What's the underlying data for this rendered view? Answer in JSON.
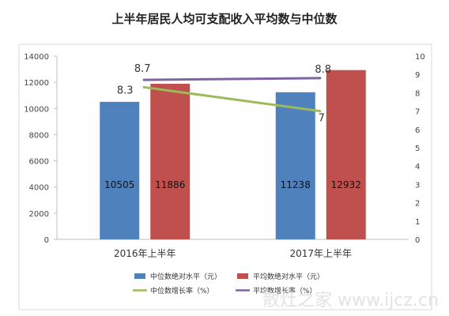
{
  "chart_data": {
    "type": "bar",
    "title": "上半年居民人均可支配收入平均数与中位数",
    "categories": [
      "2016年上半年",
      "2017年上半年"
    ],
    "series": [
      {
        "name": "中位数绝对水平（元）",
        "type": "bar",
        "axis": "left",
        "color": "#4f81bd",
        "values": [
          10505,
          11238
        ]
      },
      {
        "name": "平均数绝对水平（元）",
        "type": "bar",
        "axis": "left",
        "color": "#c0504d",
        "values": [
          11886,
          12932
        ]
      },
      {
        "name": "中位数增长率（%）",
        "type": "line",
        "axis": "right",
        "color": "#9bbb59",
        "values": [
          8.3,
          7
        ]
      },
      {
        "name": "平均数增长率（%）",
        "type": "line",
        "axis": "right",
        "color": "#8064a2",
        "values": [
          8.7,
          8.8
        ]
      }
    ],
    "y_left": {
      "min": 0,
      "max": 14000,
      "ticks": [
        "0",
        "2000",
        "4000",
        "6000",
        "8000",
        "10000",
        "12000",
        "14000"
      ]
    },
    "y_right": {
      "min": 0,
      "max": 10,
      "ticks": [
        "0",
        "1",
        "2",
        "3",
        "4",
        "5",
        "6",
        "7",
        "8",
        "9",
        "10"
      ]
    },
    "grid": false,
    "legend_position": "bottom",
    "bar_labels": [
      "10505",
      "11886",
      "11238",
      "12932"
    ],
    "point_labels": [
      "8.3",
      "7",
      "8.7",
      "8.8"
    ]
  },
  "watermark": "散灶之家 www.ijcz.cn"
}
